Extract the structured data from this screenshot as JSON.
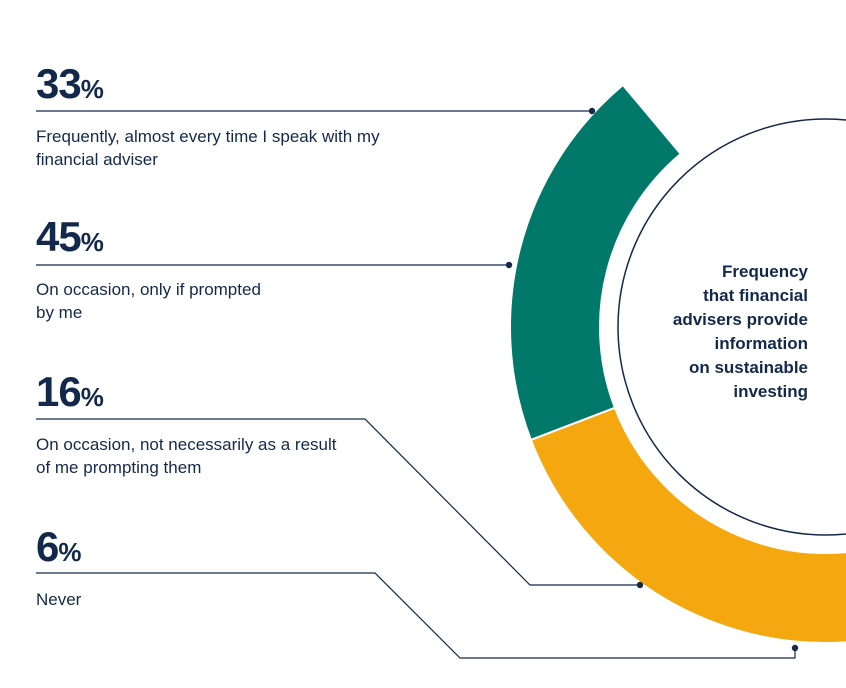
{
  "chart_data": {
    "type": "pie",
    "title": "Frequency that financial advisers provide information on sustainable investing",
    "categories": [
      "Frequently, almost every time I speak with my financial adviser",
      "On occasion, only if prompted by me",
      "On occasion, not necessarily as a result of me prompting them",
      "Never"
    ],
    "values": [
      33,
      45,
      16,
      6
    ],
    "value_labels": [
      "33",
      "45",
      "16",
      "6"
    ],
    "unit": "%",
    "colors": [
      "#00796b",
      "#f4a70f",
      "#5fc231",
      "#b5e35f"
    ],
    "line_color": "#13294b"
  },
  "center_title_lines": [
    "Frequency",
    "that financial",
    "advisers provide",
    "information",
    "on sustainable",
    "investing"
  ]
}
